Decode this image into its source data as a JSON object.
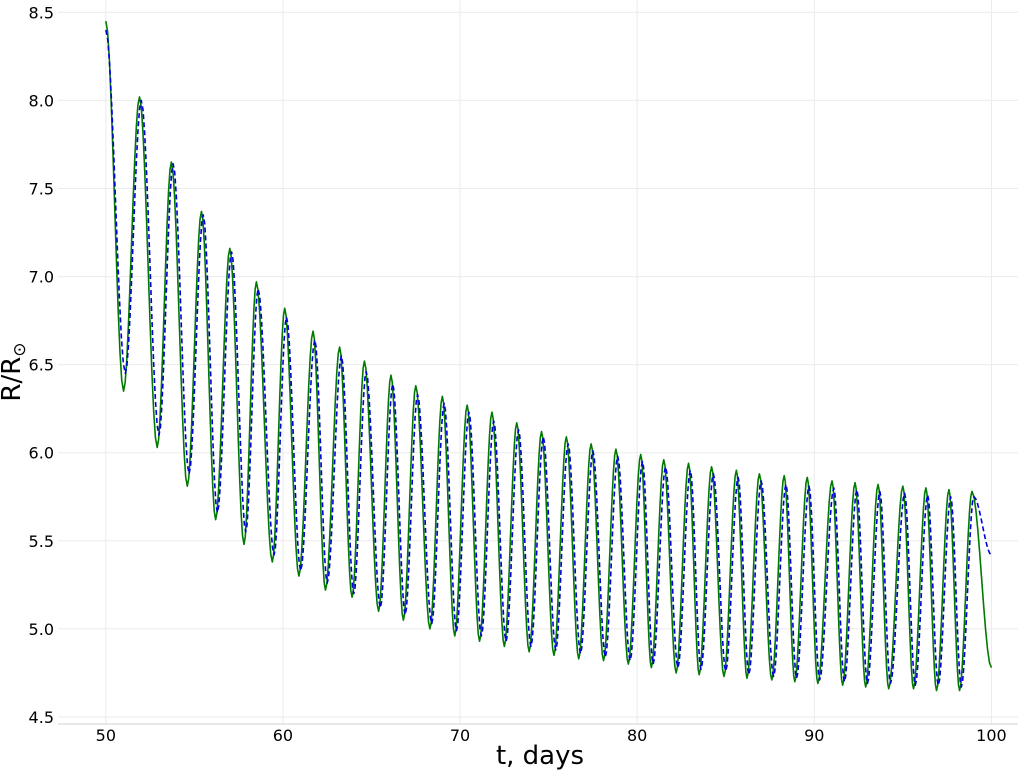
{
  "chart_data": {
    "type": "line",
    "title": "",
    "xlabel": "t, days",
    "ylabel": "R/R",
    "ylabel_subscript": "⊙",
    "xlim": [
      47.3,
      101.5
    ],
    "ylim": [
      4.46,
      8.57
    ],
    "xticks": [
      50,
      60,
      70,
      80,
      90,
      100
    ],
    "yticks": [
      4.5,
      5.0,
      5.5,
      6.0,
      6.5,
      7.0,
      7.5,
      8.0,
      8.5
    ],
    "ytick_labels": [
      "4.5",
      "5.0",
      "5.5",
      "6.0",
      "6.5",
      "7.0",
      "7.5",
      "8.0",
      "8.5"
    ],
    "grid": true,
    "legend": "none",
    "series": [
      {
        "style": "solid",
        "color": "#007a00",
        "x_start": 50.0,
        "x_end": 100.0,
        "start_value": 8.45,
        "end_value": 4.78,
        "period_days": 1.0,
        "cycles": [
          {
            "min_t": 51.0,
            "min": 6.35,
            "max_t": 51.9,
            "max": 8.02
          },
          {
            "min_t": 52.9,
            "min": 6.03,
            "max_t": 53.7,
            "max": 7.65
          },
          {
            "min_t": 54.6,
            "min": 5.81,
            "max_t": 55.4,
            "max": 7.37
          },
          {
            "min_t": 56.2,
            "min": 5.62,
            "max_t": 57.0,
            "max": 7.16
          },
          {
            "min_t": 57.8,
            "min": 5.48,
            "max_t": 58.5,
            "max": 6.97
          },
          {
            "min_t": 59.4,
            "min": 5.38,
            "max_t": 60.1,
            "max": 6.82
          },
          {
            "min_t": 60.9,
            "min": 5.3,
            "max_t": 61.7,
            "max": 6.69
          },
          {
            "min_t": 62.4,
            "min": 5.22,
            "max_t": 63.2,
            "max": 6.6
          },
          {
            "min_t": 63.9,
            "min": 5.18,
            "max_t": 64.6,
            "max": 6.52
          },
          {
            "min_t": 65.4,
            "min": 5.1,
            "max_t": 66.1,
            "max": 6.44
          },
          {
            "min_t": 66.8,
            "min": 5.05,
            "max_t": 67.5,
            "max": 6.38
          },
          {
            "min_t": 68.3,
            "min": 5.0,
            "max_t": 69.0,
            "max": 6.32
          },
          {
            "min_t": 69.7,
            "min": 4.96,
            "max_t": 70.4,
            "max": 6.27
          },
          {
            "min_t": 71.1,
            "min": 4.93,
            "max_t": 71.8,
            "max": 6.23
          },
          {
            "min_t": 72.5,
            "min": 4.9,
            "max_t": 73.2,
            "max": 6.17
          },
          {
            "min_t": 73.9,
            "min": 4.87,
            "max_t": 74.6,
            "max": 6.12
          },
          {
            "min_t": 75.3,
            "min": 4.85,
            "max_t": 76.0,
            "max": 6.09
          },
          {
            "min_t": 76.7,
            "min": 4.83,
            "max_t": 77.4,
            "max": 6.05
          },
          {
            "min_t": 78.1,
            "min": 4.82,
            "max_t": 78.8,
            "max": 6.02
          },
          {
            "min_t": 79.5,
            "min": 4.8,
            "max_t": 80.2,
            "max": 5.99
          },
          {
            "min_t": 80.8,
            "min": 4.78,
            "max_t": 81.5,
            "max": 5.96
          },
          {
            "min_t": 82.2,
            "min": 4.75,
            "max_t": 82.9,
            "max": 5.94
          },
          {
            "min_t": 83.5,
            "min": 4.74,
            "max_t": 84.2,
            "max": 5.92
          },
          {
            "min_t": 84.9,
            "min": 4.73,
            "max_t": 85.6,
            "max": 5.9
          },
          {
            "min_t": 86.2,
            "min": 4.72,
            "max_t": 86.9,
            "max": 5.88
          },
          {
            "min_t": 87.6,
            "min": 4.71,
            "max_t": 88.3,
            "max": 5.87
          },
          {
            "min_t": 88.9,
            "min": 4.7,
            "max_t": 89.6,
            "max": 5.86
          },
          {
            "min_t": 90.2,
            "min": 4.69,
            "max_t": 91.0,
            "max": 5.84
          },
          {
            "min_t": 91.6,
            "min": 4.68,
            "max_t": 92.3,
            "max": 5.83
          },
          {
            "min_t": 92.9,
            "min": 4.67,
            "max_t": 93.6,
            "max": 5.82
          },
          {
            "min_t": 94.2,
            "min": 4.66,
            "max_t": 95.0,
            "max": 5.81
          },
          {
            "min_t": 95.6,
            "min": 4.66,
            "max_t": 96.3,
            "max": 5.8
          },
          {
            "min_t": 96.9,
            "min": 4.65,
            "max_t": 97.6,
            "max": 5.79
          },
          {
            "min_t": 98.2,
            "min": 4.65,
            "max_t": 98.9,
            "max": 5.78
          }
        ]
      },
      {
        "style": "dashed",
        "color": "#0000dd",
        "x_start": 50.0,
        "x_end": 100.0,
        "start_value": 8.4,
        "end_value": 5.42,
        "period_days": 1.0,
        "cycles": [
          {
            "min_t": 51.1,
            "min": 6.45,
            "max_t": 52.0,
            "max": 8.0
          },
          {
            "min_t": 53.0,
            "min": 6.1,
            "max_t": 53.8,
            "max": 7.64
          },
          {
            "min_t": 54.7,
            "min": 5.88,
            "max_t": 55.5,
            "max": 7.35
          },
          {
            "min_t": 56.3,
            "min": 5.66,
            "max_t": 57.1,
            "max": 7.14
          },
          {
            "min_t": 57.9,
            "min": 5.55,
            "max_t": 58.6,
            "max": 6.93
          },
          {
            "min_t": 59.5,
            "min": 5.42,
            "max_t": 60.2,
            "max": 6.77
          },
          {
            "min_t": 61.0,
            "min": 5.33,
            "max_t": 61.8,
            "max": 6.64
          },
          {
            "min_t": 62.5,
            "min": 5.26,
            "max_t": 63.3,
            "max": 6.55
          },
          {
            "min_t": 64.0,
            "min": 5.2,
            "max_t": 64.7,
            "max": 6.46
          },
          {
            "min_t": 65.5,
            "min": 5.12,
            "max_t": 66.2,
            "max": 6.39
          },
          {
            "min_t": 66.9,
            "min": 5.08,
            "max_t": 67.6,
            "max": 6.33
          },
          {
            "min_t": 68.4,
            "min": 5.03,
            "max_t": 69.1,
            "max": 6.28
          },
          {
            "min_t": 69.8,
            "min": 4.99,
            "max_t": 70.5,
            "max": 6.23
          },
          {
            "min_t": 71.2,
            "min": 4.96,
            "max_t": 71.9,
            "max": 6.18
          },
          {
            "min_t": 72.6,
            "min": 4.93,
            "max_t": 73.3,
            "max": 6.13
          },
          {
            "min_t": 74.0,
            "min": 4.9,
            "max_t": 74.7,
            "max": 6.09
          },
          {
            "min_t": 75.4,
            "min": 4.88,
            "max_t": 76.1,
            "max": 6.05
          },
          {
            "min_t": 76.8,
            "min": 4.86,
            "max_t": 77.5,
            "max": 6.01
          },
          {
            "min_t": 78.2,
            "min": 4.84,
            "max_t": 78.9,
            "max": 5.98
          },
          {
            "min_t": 79.6,
            "min": 4.82,
            "max_t": 80.3,
            "max": 5.95
          },
          {
            "min_t": 80.9,
            "min": 4.8,
            "max_t": 81.6,
            "max": 5.92
          },
          {
            "min_t": 82.3,
            "min": 4.78,
            "max_t": 83.0,
            "max": 5.9
          },
          {
            "min_t": 83.6,
            "min": 4.77,
            "max_t": 84.3,
            "max": 5.88
          },
          {
            "min_t": 85.0,
            "min": 4.76,
            "max_t": 85.7,
            "max": 5.86
          },
          {
            "min_t": 86.3,
            "min": 4.74,
            "max_t": 87.0,
            "max": 5.84
          },
          {
            "min_t": 87.7,
            "min": 4.73,
            "max_t": 88.4,
            "max": 5.82
          },
          {
            "min_t": 89.0,
            "min": 4.72,
            "max_t": 89.7,
            "max": 5.81
          },
          {
            "min_t": 90.3,
            "min": 4.71,
            "max_t": 91.1,
            "max": 5.8
          },
          {
            "min_t": 91.7,
            "min": 4.7,
            "max_t": 92.4,
            "max": 5.79
          },
          {
            "min_t": 93.0,
            "min": 4.69,
            "max_t": 93.7,
            "max": 5.78
          },
          {
            "min_t": 94.3,
            "min": 4.69,
            "max_t": 95.1,
            "max": 5.77
          },
          {
            "min_t": 95.7,
            "min": 4.68,
            "max_t": 96.4,
            "max": 5.76
          },
          {
            "min_t": 97.0,
            "min": 4.68,
            "max_t": 97.7,
            "max": 5.75
          },
          {
            "min_t": 98.3,
            "min": 4.67,
            "max_t": 99.0,
            "max": 5.75
          }
        ]
      }
    ]
  }
}
